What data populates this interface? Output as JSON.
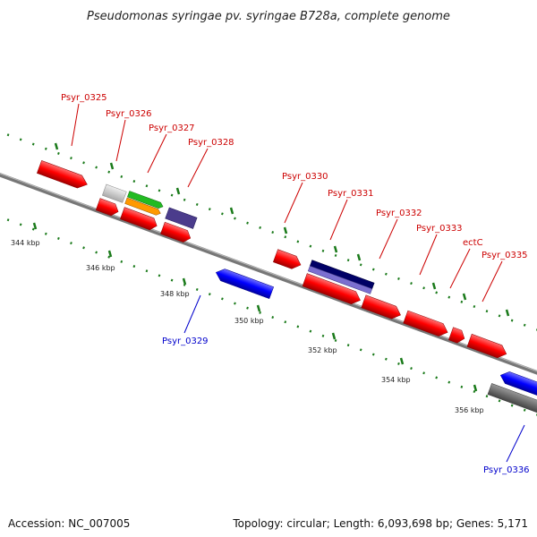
{
  "title": "Pseudomonas syringae pv. syringae B728a, complete genome",
  "footer": {
    "accession": "Accession: NC_007005",
    "topology": "Topology: circular; Length: 6,093,698 bp; Genes: 5,171"
  },
  "ticks": [
    "344 kbp",
    "346 kbp",
    "348 kbp",
    "350 kbp",
    "352 kbp",
    "354 kbp",
    "356 kbp"
  ],
  "labels": [
    {
      "text": "Psyr_0325",
      "color": "#cc0000"
    },
    {
      "text": "Psyr_0326",
      "color": "#cc0000"
    },
    {
      "text": "Psyr_0327",
      "color": "#cc0000"
    },
    {
      "text": "Psyr_0328",
      "color": "#cc0000"
    },
    {
      "text": "Psyr_0330",
      "color": "#cc0000"
    },
    {
      "text": "Psyr_0331",
      "color": "#cc0000"
    },
    {
      "text": "Psyr_0332",
      "color": "#cc0000"
    },
    {
      "text": "Psyr_0333",
      "color": "#cc0000"
    },
    {
      "text": "ectC",
      "color": "#cc0000"
    },
    {
      "text": "Psyr_0335",
      "color": "#cc0000"
    },
    {
      "text": "Psyr_0329",
      "color": "#0000cc"
    },
    {
      "text": "Psyr_0336",
      "color": "#0000cc"
    }
  ],
  "colors": {
    "forward_cds": "#ff0000",
    "reverse_cds": "#0000ff",
    "backbone": "#808080",
    "gc_dots": "#1a7a1a",
    "grey_feature": "#c8c8c8",
    "green_feature": "#22bb22",
    "orange_feature": "#ff9900",
    "purple_feature": "#4b3c8c",
    "navy_feature": "#000066",
    "lavender_feature": "#7b6fd0",
    "dark_grey_feature": "#666666"
  }
}
